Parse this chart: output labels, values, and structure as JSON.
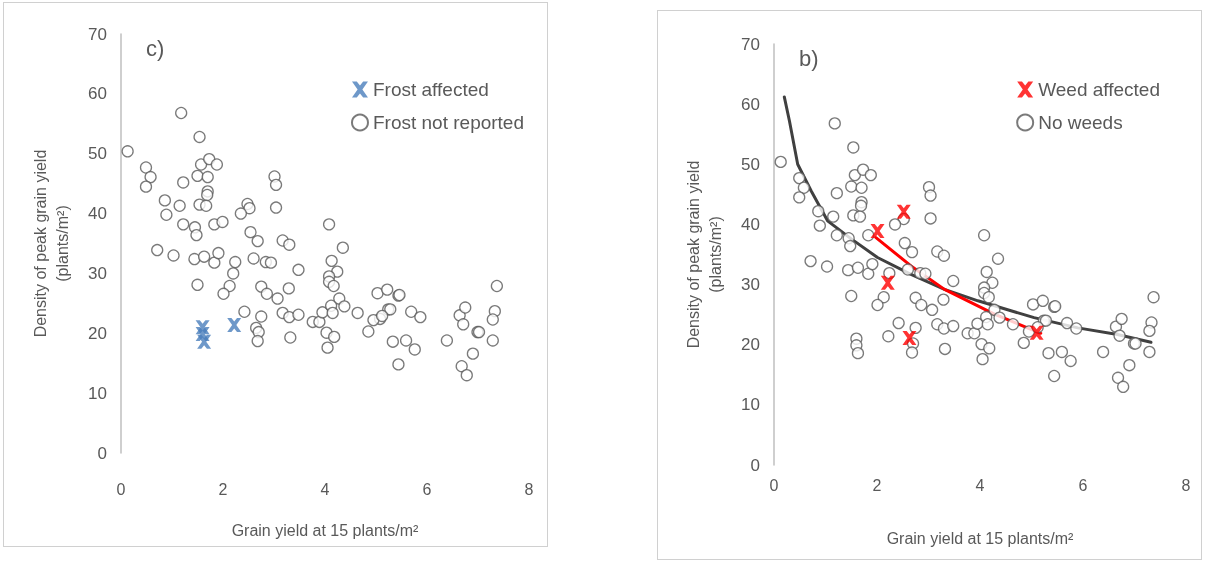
{
  "chart_data": [
    {
      "type": "scatter",
      "title": "c)",
      "xlabel": "Grain yield at 15 plants/m²",
      "ylabel": "Density of peak grain yield\n(plants/m²)",
      "xlim": [
        0,
        8
      ],
      "xticks": [
        0,
        2,
        4,
        6,
        8
      ],
      "ylim": [
        0,
        70
      ],
      "yticks": [
        0,
        10,
        20,
        30,
        40,
        50,
        60,
        70
      ],
      "grid": false,
      "legend": "top right",
      "series": [
        {
          "name": "Frost affected",
          "color": "#4a7ebb",
          "marker": "cross",
          "x": [
            1.6,
            1.6,
            1.63,
            2.22
          ],
          "values": [
            21,
            19.9,
            18.6,
            21.4
          ]
        },
        {
          "name": "Frost not reported",
          "color": "#595959",
          "marker": "circle",
          "x": [
            1.18,
            1.54,
            0.13,
            0.49,
            0.58,
            0.49,
            1.57,
            1.73,
            1.88,
            1.5,
            1.7,
            1.22,
            1.7,
            1.69,
            0.86,
            1.54,
            1.67,
            1.15,
            0.89,
            1.22,
            1.45,
            1.48,
            1.83,
            1.99,
            3.01,
            3.04,
            3.04,
            2.48,
            2.52,
            2.35,
            2.54,
            2.68,
            3.17,
            3.3,
            4.08,
            0.71,
            1.03,
            1.44,
            1.63,
            1.83,
            1.91,
            2.24,
            2.2,
            2.13,
            2.01,
            2.6,
            2.84,
            2.94,
            3.48,
            1.5,
            2.75,
            2.86,
            3.07,
            3.29,
            2.42,
            2.75,
            2.65,
            2.7,
            2.68,
            3.17,
            3.3,
            3.48,
            3.32,
            3.76,
            3.89,
            3.95,
            4.12,
            4.03,
            4.18,
            4.05,
            4.13,
            4.24,
            4.08,
            4.08,
            4.17,
            4.28,
            4.38,
            4.15,
            4.64,
            4.35,
            5.03,
            5.22,
            5.44,
            5.46,
            5.24,
            5.28,
            5.08,
            4.95,
            5.12,
            4.85,
            5.69,
            5.87,
            5.33,
            5.59,
            5.76,
            5.44,
            6.39,
            6.64,
            6.75,
            6.71,
            6.99,
            7.02,
            7.37,
            7.33,
            7.29,
            7.29,
            6.9,
            6.68,
            6.78
          ],
          "values": [
            56.8,
            52.8,
            50.4,
            47.7,
            46.1,
            44.5,
            48.2,
            49.1,
            48.2,
            46.3,
            46.1,
            45.2,
            43.7,
            43.1,
            42.2,
            41.5,
            41.3,
            41.3,
            39.8,
            38.2,
            37.7,
            36.4,
            38.2,
            38.6,
            46.2,
            44.8,
            41,
            41.6,
            40.9,
            40,
            36.9,
            35.4,
            35.5,
            34.8,
            38.2,
            33.9,
            33,
            32.4,
            32.8,
            31.8,
            33.4,
            31.9,
            30,
            27.9,
            26.6,
            32.5,
            31.9,
            31.8,
            30.6,
            28.1,
            27.8,
            26.6,
            25.8,
            27.5,
            23.6,
            22.8,
            20.9,
            20.2,
            18.7,
            23.4,
            22.7,
            23.1,
            19.3,
            21.9,
            21.9,
            23.5,
            24.6,
            20.1,
            19.4,
            17.6,
            32.1,
            30.3,
            29.5,
            28.6,
            27.9,
            25.8,
            24.5,
            23.4,
            23.4,
            34.3,
            26.7,
            27.3,
            26.3,
            26.4,
            24,
            24,
            22.4,
            22.2,
            22.9,
            20.3,
            23.6,
            22.7,
            18.6,
            18.8,
            17.3,
            14.8,
            18.8,
            23,
            24.3,
            21.5,
            20.2,
            20.2,
            27.9,
            23.7,
            22.3,
            18.8,
            16.6,
            14.5,
            13
          ]
        }
      ]
    },
    {
      "type": "scatter",
      "title": "b)",
      "xlabel": "Grain yield at 15 plants/m²",
      "ylabel": "Density of peak grain yield\n(plants/m²)",
      "xlim": [
        0,
        8
      ],
      "xticks": [
        0,
        2,
        4,
        6,
        8
      ],
      "ylim": [
        0,
        70
      ],
      "yticks": [
        0,
        10,
        20,
        30,
        40,
        50,
        60,
        70
      ],
      "grid": false,
      "legend": "top right",
      "series": [
        {
          "name": "Weed affected",
          "color": "#ff0000",
          "marker": "cross",
          "x": [
            2.01,
            2.52,
            2.21,
            2.63,
            5.1
          ],
          "values": [
            38.9,
            42.1,
            30.3,
            21.1,
            22
          ]
        },
        {
          "name": "No weeds",
          "color": "#595959",
          "marker": "circle",
          "x": [
            1.6,
            1.6,
            1.63,
            2.22,
            1.18,
            1.54,
            0.13,
            0.49,
            0.58,
            0.49,
            1.57,
            1.73,
            1.88,
            1.5,
            1.7,
            1.22,
            1.7,
            1.69,
            0.86,
            1.54,
            1.67,
            1.15,
            0.89,
            1.22,
            1.45,
            1.48,
            1.83,
            3.01,
            3.04,
            3.04,
            2.52,
            2.35,
            2.54,
            2.68,
            3.17,
            3.3,
            4.08,
            0.71,
            1.03,
            1.44,
            1.63,
            1.83,
            1.91,
            2.24,
            2.13,
            2.01,
            2.6,
            2.84,
            2.94,
            3.48,
            1.5,
            2.75,
            2.86,
            3.07,
            3.29,
            2.42,
            2.75,
            2.7,
            2.68,
            3.17,
            3.3,
            3.48,
            3.32,
            3.76,
            3.89,
            3.95,
            4.12,
            4.03,
            4.18,
            4.05,
            4.13,
            4.24,
            4.08,
            4.08,
            4.17,
            4.28,
            4.38,
            4.15,
            4.64,
            4.35,
            5.03,
            5.22,
            5.44,
            5.46,
            5.24,
            5.28,
            4.95,
            5.12,
            4.85,
            5.69,
            5.87,
            5.33,
            5.59,
            5.76,
            5.44,
            6.39,
            6.64,
            6.75,
            6.71,
            6.99,
            7.02,
            7.37,
            7.33,
            7.29,
            7.29,
            6.9,
            6.68,
            6.78
          ],
          "values": [
            21,
            19.9,
            18.6,
            21.4,
            56.8,
            52.8,
            50.4,
            47.7,
            46.1,
            44.5,
            48.2,
            49.1,
            48.2,
            46.3,
            46.1,
            45.2,
            43.7,
            43.1,
            42.2,
            41.5,
            41.3,
            41.3,
            39.8,
            38.2,
            37.7,
            36.4,
            38.2,
            46.2,
            44.8,
            41,
            40.9,
            40,
            36.9,
            35.4,
            35.5,
            34.8,
            38.2,
            33.9,
            33,
            32.4,
            32.8,
            31.8,
            33.4,
            31.9,
            27.9,
            26.6,
            32.5,
            31.9,
            31.8,
            30.6,
            28.1,
            27.8,
            26.6,
            25.8,
            27.5,
            23.6,
            22.8,
            20.2,
            18.7,
            23.4,
            22.7,
            23.1,
            19.3,
            21.9,
            21.9,
            23.5,
            24.6,
            20.1,
            19.4,
            17.6,
            32.1,
            30.3,
            29.5,
            28.6,
            27.9,
            25.8,
            24.5,
            23.4,
            23.4,
            34.3,
            26.7,
            27.3,
            26.3,
            26.4,
            24,
            24,
            22.2,
            22.9,
            20.3,
            23.6,
            22.7,
            18.6,
            18.8,
            17.3,
            14.8,
            18.8,
            23,
            24.3,
            21.5,
            20.2,
            20.2,
            27.9,
            23.7,
            22.3,
            18.8,
            16.6,
            14.5,
            13
          ]
        },
        {
          "type": "line",
          "color": "#404040",
          "marker": "none",
          "x": [
            0.2,
            0.3,
            0.46,
            0.72,
            1.04,
            1.5,
            2.01,
            2.66,
            3.31,
            3.96,
            5.05,
            5.9,
            6.67,
            7.32
          ],
          "values": [
            61.2,
            57.2,
            50,
            45.6,
            40.6,
            37.6,
            34.5,
            31.7,
            29.2,
            27.3,
            24.5,
            22.8,
            21.7,
            20.4
          ]
        },
        {
          "type": "line",
          "color": "#ff0000",
          "marker": "none",
          "x": [
            1.98,
            2.66,
            3.31,
            4.28,
            5.18
          ],
          "values": [
            37.8,
            33.1,
            29.2,
            25.1,
            21.9
          ]
        }
      ]
    }
  ]
}
